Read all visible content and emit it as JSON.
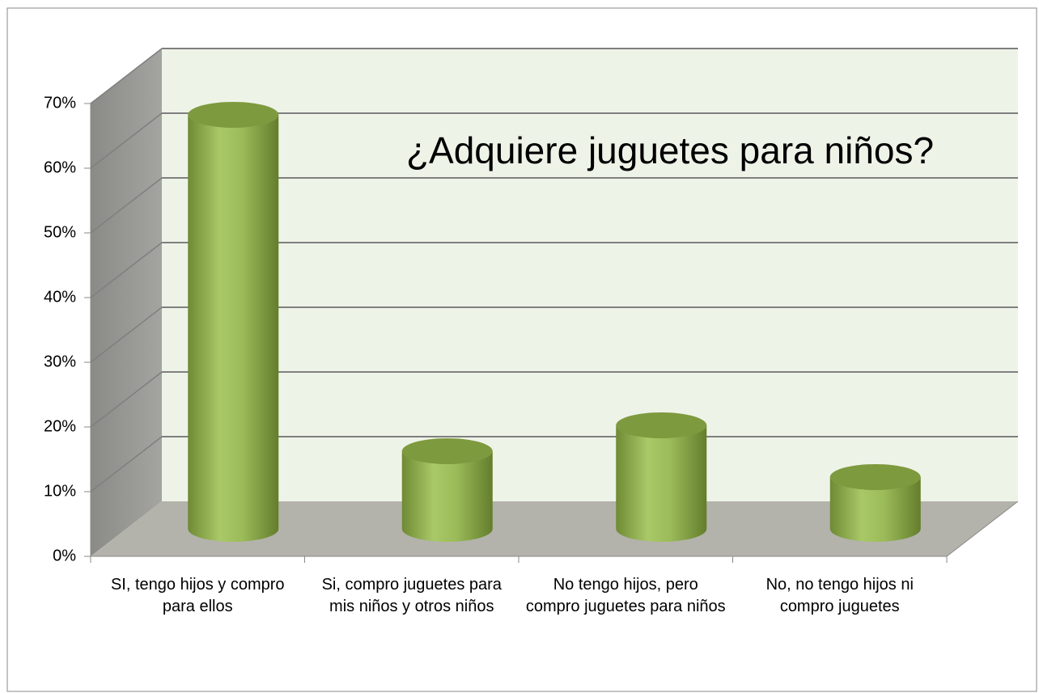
{
  "chart_data": {
    "type": "bar3d",
    "title": "¿Adquiere juguetes para niños?",
    "categories": [
      "SI, tengo hijos y compro para ellos",
      "Si, compro juguetes para mis niños y otros niños",
      "No tengo hijos, pero compro juguetes para niños",
      "No, no tengo hijos ni compro juguetes"
    ],
    "values": [
      64,
      12,
      16,
      8
    ],
    "color": "#9bbb59",
    "ylim": [
      0,
      70
    ],
    "yticks": [
      {
        "value": 0,
        "label": "0%"
      },
      {
        "value": 10,
        "label": "10%"
      },
      {
        "value": 20,
        "label": "20%"
      },
      {
        "value": 30,
        "label": "30%"
      },
      {
        "value": 40,
        "label": "40%"
      },
      {
        "value": 50,
        "label": "50%"
      },
      {
        "value": 60,
        "label": "60%"
      },
      {
        "value": 70,
        "label": "70%"
      }
    ],
    "grid": true
  }
}
